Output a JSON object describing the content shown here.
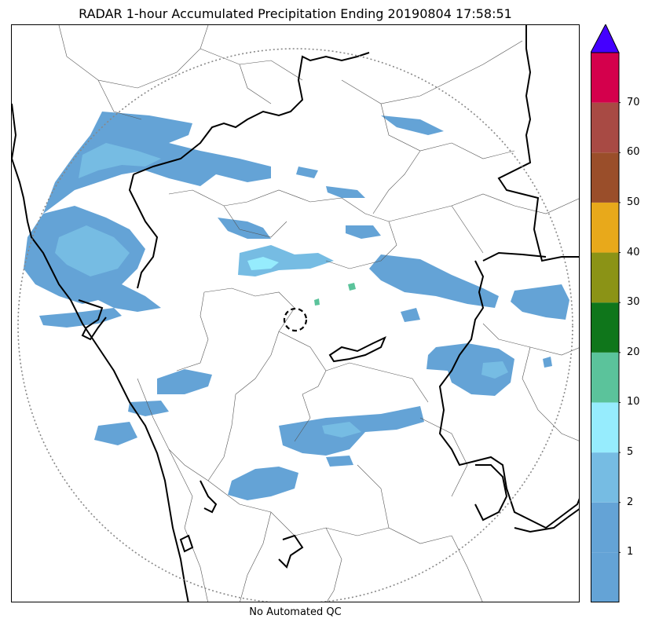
{
  "title": "RADAR 1-hour Accumulated Precipitation Ending 20190804 17:58:51",
  "subtitle": "No Automated QC",
  "colorbar": {
    "extend": "max",
    "levels": [
      {
        "value": "1",
        "color": "#64a3d6"
      },
      {
        "value": "2",
        "color": "#76bce3"
      },
      {
        "value": "5",
        "color": "#96ecfd"
      },
      {
        "value": "10",
        "color": "#5bc39b"
      },
      {
        "value": "20",
        "color": "#0f761b"
      },
      {
        "value": "30",
        "color": "#8b9316"
      },
      {
        "value": "40",
        "color": "#e8a91b"
      },
      {
        "value": "50",
        "color": "#9a4e2a"
      },
      {
        "value": "60",
        "color": "#a84a44"
      },
      {
        "value": "70",
        "color": "#d4004c"
      }
    ],
    "bottom_color": "#64a3d6",
    "over_color": "#4400ff"
  },
  "map": {
    "legend_elements": [
      "radar-range-ring",
      "radar-site-marker",
      "state-boundaries",
      "district-boundaries",
      "coastline"
    ]
  }
}
